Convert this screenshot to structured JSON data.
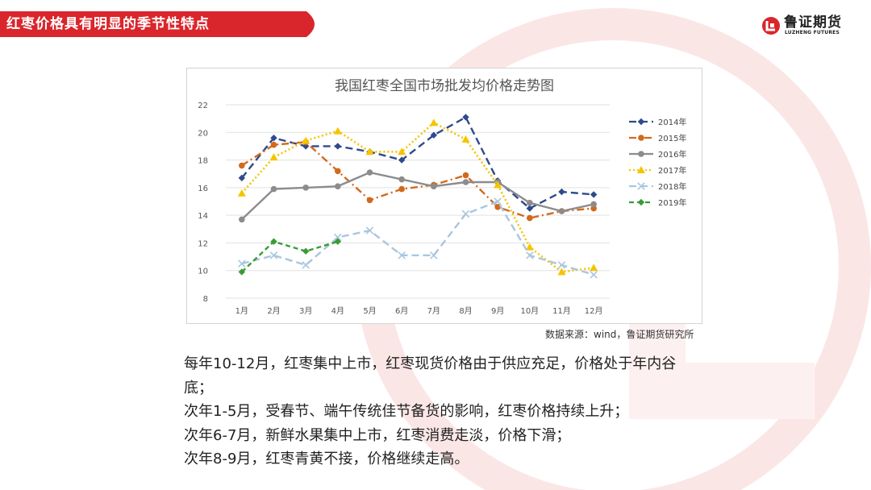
{
  "header": {
    "title": "红枣价格具有明显的季节性特点"
  },
  "logo": {
    "name_cn": "鲁证期货",
    "name_en": "LUZHENG FUTURES",
    "icon": "luzheng-logo-icon"
  },
  "colors": {
    "accent_red": "#d9262c",
    "deco_red": "#fbe6e6"
  },
  "chart_data": {
    "type": "line",
    "title": "我国红枣全国市场批发均价格走势图",
    "xlabel": "",
    "ylabel": "",
    "categories": [
      "1月",
      "2月",
      "3月",
      "4月",
      "5月",
      "6月",
      "7月",
      "8月",
      "9月",
      "10月",
      "11月",
      "12月"
    ],
    "ylim": [
      8,
      22
    ],
    "yticks": [
      8,
      10,
      12,
      14,
      16,
      18,
      20,
      22
    ],
    "grid": true,
    "legend_position": "right",
    "series": [
      {
        "name": "2014年",
        "color": "#2e4a8c",
        "dash": "long",
        "marker": "diamond",
        "values": [
          16.7,
          19.6,
          19.0,
          19.0,
          18.6,
          18.0,
          19.8,
          21.1,
          16.5,
          14.5,
          15.7,
          15.5
        ]
      },
      {
        "name": "2015年",
        "color": "#d2691e",
        "dash": "dashdot",
        "marker": "circle",
        "values": [
          17.6,
          19.1,
          19.3,
          17.2,
          15.1,
          15.9,
          16.2,
          16.9,
          14.6,
          13.8,
          14.3,
          14.5
        ]
      },
      {
        "name": "2016年",
        "color": "#8c8c8c",
        "dash": "solid",
        "marker": "circle",
        "values": [
          13.7,
          15.9,
          16.0,
          16.1,
          17.1,
          16.6,
          16.1,
          16.4,
          16.4,
          14.9,
          14.3,
          14.8
        ]
      },
      {
        "name": "2017年",
        "color": "#f5c400",
        "dash": "dot",
        "marker": "triangle",
        "values": [
          15.6,
          18.2,
          19.4,
          20.1,
          18.6,
          18.6,
          20.7,
          19.5,
          16.2,
          11.7,
          9.9,
          10.2
        ]
      },
      {
        "name": "2018年",
        "color": "#a9c6e0",
        "dash": "long",
        "marker": "x",
        "values": [
          10.5,
          11.1,
          10.4,
          12.4,
          12.9,
          11.1,
          11.1,
          14.1,
          15.0,
          11.1,
          10.4,
          9.7
        ]
      },
      {
        "name": "2019年",
        "color": "#3a9b35",
        "dash": "dashed",
        "marker": "diamond",
        "values": [
          9.9,
          12.1,
          11.4,
          12.1,
          null,
          null,
          null,
          null,
          null,
          null,
          null,
          null
        ]
      }
    ]
  },
  "source": "数据来源：wind，鲁证期货研究所",
  "paragraphs": [
    "每年10-12月，红枣集中上市，红枣现货价格由于供应充足，价格处于年内谷",
    "底；",
    "次年1-5月，受春节、端午传统佳节备货的影响，红枣价格持续上升；",
    "次年6-7月，新鲜水果集中上市，红枣消费走淡，价格下滑；",
    "次年8-9月，红枣青黄不接，价格继续走高。"
  ]
}
